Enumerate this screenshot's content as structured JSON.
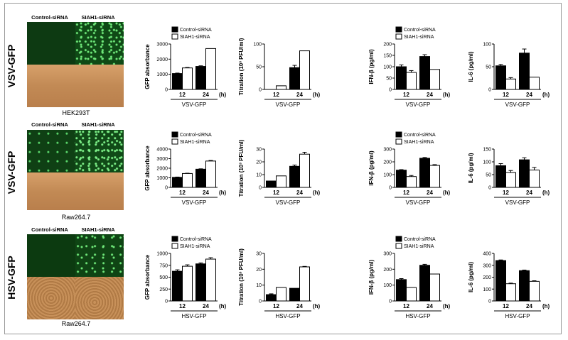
{
  "rows": [
    {
      "label": "VSV-GFP",
      "cell_line": "HEK293T",
      "col1": "Control-siRNA",
      "col2": "SIAH1-siRNA"
    },
    {
      "label": "VSV-GFP",
      "cell_line": "Raw264.7",
      "col1": "Control-siRNA",
      "col2": "SIAH1-siRNA"
    },
    {
      "label": "HSV-GFP",
      "cell_line": "Raw264.7",
      "col1": "Control-siRNA",
      "col2": "SIAH1-siRNA"
    }
  ],
  "colors": {
    "control": "#000000",
    "siah1": "#ffffff",
    "stroke": "#000000"
  },
  "chart_data": [
    {
      "type": "bar",
      "row": 0,
      "ylabel": "GFP absorbance",
      "xlabel": "VSV-GFP",
      "categories": [
        "12",
        "24"
      ],
      "unit": "(h)",
      "ylim": [
        0,
        3000
      ],
      "yticks": [
        0,
        1000,
        2000,
        3000
      ],
      "legend": true,
      "series": [
        {
          "name": "Control-siRNA",
          "values": [
            1050,
            1520
          ],
          "err": [
            30,
            40
          ]
        },
        {
          "name": "SIAH1-siRNA",
          "values": [
            1420,
            2700
          ],
          "err": [
            30,
            0
          ]
        }
      ]
    },
    {
      "type": "bar",
      "row": 0,
      "ylabel": "Titration (10³ PFU/ml)",
      "xlabel": "VSV-GFP",
      "categories": [
        "12",
        "24"
      ],
      "unit": "(h)",
      "ylim": [
        0,
        100
      ],
      "yticks": [
        0,
        50,
        100
      ],
      "legend": false,
      "series": [
        {
          "name": "Control-siRNA",
          "values": [
            0,
            48
          ],
          "err": [
            0,
            5
          ]
        },
        {
          "name": "SIAH1-siRNA",
          "values": [
            8,
            85
          ],
          "err": [
            0,
            0
          ]
        }
      ]
    },
    {
      "type": "bar",
      "row": 0,
      "ylabel": "IFN-β (pg/ml)",
      "xlabel": "VSV-GFP",
      "categories": [
        "12",
        "24"
      ],
      "unit": "(h)",
      "ylim": [
        0,
        200
      ],
      "yticks": [
        0,
        50,
        100,
        150,
        200
      ],
      "legend": true,
      "series": [
        {
          "name": "Control-siRNA",
          "values": [
            100,
            145
          ],
          "err": [
            8,
            8
          ]
        },
        {
          "name": "SIAH1-siRNA",
          "values": [
            75,
            88
          ],
          "err": [
            8,
            0
          ]
        }
      ]
    },
    {
      "type": "bar",
      "row": 0,
      "ylabel": "IL-6 (pg/ml)",
      "xlabel": "VSV-GFP",
      "categories": [
        "12",
        "24"
      ],
      "unit": "(h)",
      "ylim": [
        0,
        100
      ],
      "yticks": [
        0,
        50,
        100
      ],
      "legend": false,
      "series": [
        {
          "name": "Control-siRNA",
          "values": [
            52,
            80
          ],
          "err": [
            3,
            9
          ]
        },
        {
          "name": "SIAH1-siRNA",
          "values": [
            23,
            27
          ],
          "err": [
            3,
            0
          ]
        }
      ]
    },
    {
      "type": "bar",
      "row": 1,
      "ylabel": "GFP absorbance",
      "xlabel": "VSV-GFP",
      "categories": [
        "12",
        "24"
      ],
      "unit": "(h)",
      "ylim": [
        0,
        4000
      ],
      "yticks": [
        0,
        1000,
        2000,
        3000,
        4000
      ],
      "legend": true,
      "series": [
        {
          "name": "Control-siRNA",
          "values": [
            1050,
            1900
          ],
          "err": [
            30,
            40
          ]
        },
        {
          "name": "SIAH1-siRNA",
          "values": [
            1450,
            2750
          ],
          "err": [
            30,
            60
          ]
        }
      ]
    },
    {
      "type": "bar",
      "row": 1,
      "ylabel": "Titration (10³ PFU/ml)",
      "xlabel": "VSV-GFP",
      "categories": [
        "12",
        "24"
      ],
      "unit": "(h)",
      "ylim": [
        0,
        30
      ],
      "yticks": [
        0,
        10,
        20,
        30
      ],
      "legend": false,
      "series": [
        {
          "name": "Control-siRNA",
          "values": [
            5,
            16.5
          ],
          "err": [
            0,
            1
          ]
        },
        {
          "name": "SIAH1-siRNA",
          "values": [
            9,
            26
          ],
          "err": [
            0,
            1.5
          ]
        }
      ]
    },
    {
      "type": "bar",
      "row": 1,
      "ylabel": "IFN-β (pg/ml)",
      "xlabel": "VSV-GFP",
      "categories": [
        "12",
        "24"
      ],
      "unit": "(h)",
      "ylim": [
        0,
        300
      ],
      "yticks": [
        0,
        100,
        200,
        300
      ],
      "legend": true,
      "series": [
        {
          "name": "Control-siRNA",
          "values": [
            135,
            228
          ],
          "err": [
            4,
            6
          ]
        },
        {
          "name": "SIAH1-siRNA",
          "values": [
            85,
            172
          ],
          "err": [
            8,
            6
          ]
        }
      ]
    },
    {
      "type": "bar",
      "row": 1,
      "ylabel": "IL-6 (pg/ml)",
      "xlabel": "VSV-GFP",
      "categories": [
        "12",
        "24"
      ],
      "unit": "(h)",
      "ylim": [
        0,
        150
      ],
      "yticks": [
        0,
        50,
        100,
        150
      ],
      "legend": false,
      "series": [
        {
          "name": "Control-siRNA",
          "values": [
            85,
            108
          ],
          "err": [
            8,
            8
          ]
        },
        {
          "name": "SIAH1-siRNA",
          "values": [
            58,
            68
          ],
          "err": [
            8,
            10
          ]
        }
      ]
    },
    {
      "type": "bar",
      "row": 2,
      "ylabel": "GFP absorbance",
      "xlabel": "HSV-GFP",
      "categories": [
        "12",
        "24"
      ],
      "unit": "(h)",
      "ylim": [
        0,
        1000
      ],
      "yticks": [
        0,
        250,
        500,
        750,
        1000
      ],
      "legend": true,
      "series": [
        {
          "name": "Control-siRNA",
          "values": [
            625,
            780
          ],
          "err": [
            30,
            20
          ]
        },
        {
          "name": "SIAH1-siRNA",
          "values": [
            730,
            880
          ],
          "err": [
            30,
            30
          ]
        }
      ]
    },
    {
      "type": "bar",
      "row": 2,
      "ylabel": "Titration (10³ PFU/ml)",
      "xlabel": "HSV-GFP",
      "categories": [
        "12",
        "24"
      ],
      "unit": "(h)",
      "ylim": [
        0,
        30
      ],
      "yticks": [
        0,
        10,
        20,
        30
      ],
      "legend": false,
      "series": [
        {
          "name": "Control-siRNA",
          "values": [
            4,
            8
          ],
          "err": [
            0.5,
            0
          ]
        },
        {
          "name": "SIAH1-siRNA",
          "values": [
            8.5,
            21.5
          ],
          "err": [
            0,
            0.3
          ]
        }
      ]
    },
    {
      "type": "bar",
      "row": 2,
      "ylabel": "IFN-β (pg/ml)",
      "xlabel": "HSV-GFP",
      "categories": [
        "12",
        "24"
      ],
      "unit": "(h)",
      "ylim": [
        0,
        300
      ],
      "yticks": [
        0,
        100,
        200,
        300
      ],
      "legend": true,
      "series": [
        {
          "name": "Control-siRNA",
          "values": [
            135,
            225
          ],
          "err": [
            6,
            6
          ]
        },
        {
          "name": "SIAH1-siRNA",
          "values": [
            85,
            170
          ],
          "err": [
            0,
            0
          ]
        }
      ]
    },
    {
      "type": "bar",
      "row": 2,
      "ylabel": "IL-6 (pg/ml)",
      "xlabel": "HSV-GFP",
      "categories": [
        "12",
        "24"
      ],
      "unit": "(h)",
      "ylim": [
        0,
        400
      ],
      "yticks": [
        0,
        100,
        200,
        300,
        400
      ],
      "legend": false,
      "series": [
        {
          "name": "Control-siRNA",
          "values": [
            340,
            255
          ],
          "err": [
            5,
            5
          ]
        },
        {
          "name": "SIAH1-siRNA",
          "values": [
            145,
            165
          ],
          "err": [
            5,
            5
          ]
        }
      ]
    }
  ]
}
